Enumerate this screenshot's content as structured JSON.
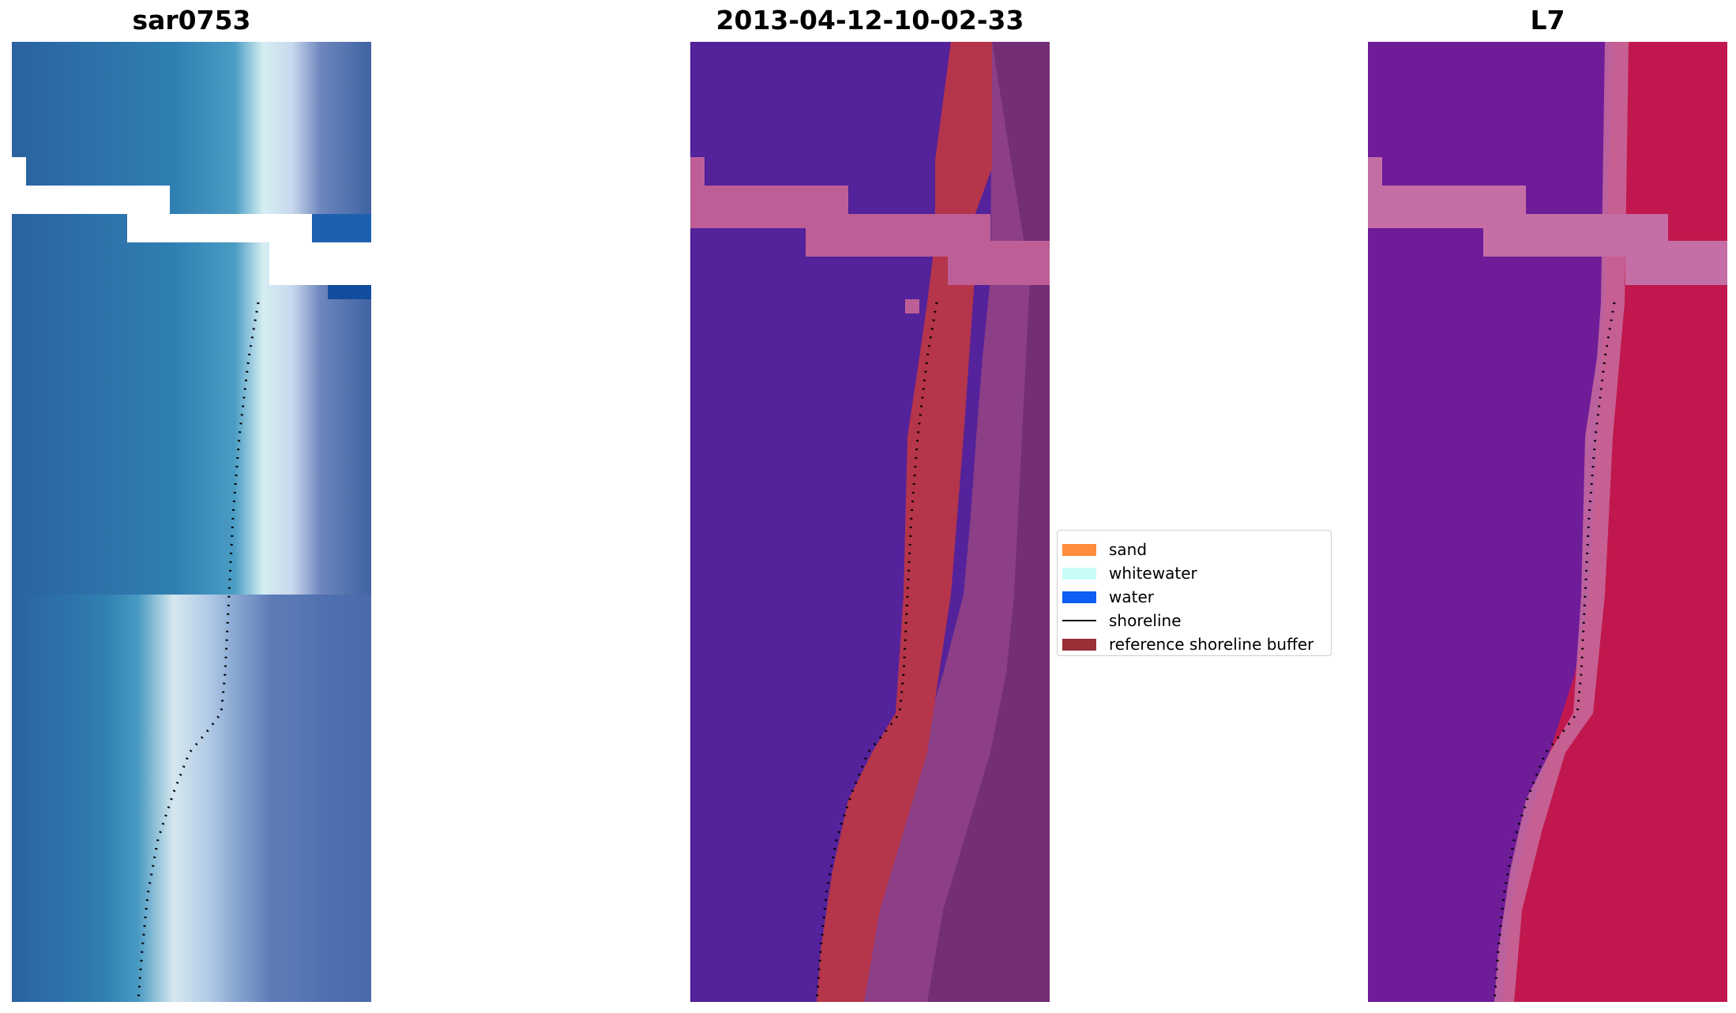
{
  "panels": [
    {
      "title": "sar0753"
    },
    {
      "title": "2013-04-12-10-02-33"
    },
    {
      "title": "L7"
    }
  ],
  "legend": {
    "items": [
      {
        "label": "sand",
        "color": "#ff8c3b",
        "kind": "patch"
      },
      {
        "label": "whitewater",
        "color": "#c8fdfa",
        "kind": "patch"
      },
      {
        "label": "water",
        "color": "#0d5ef2",
        "kind": "patch"
      },
      {
        "label": "shoreline",
        "color": "#000000",
        "kind": "line"
      },
      {
        "label": "reference shoreline buffer",
        "color": "#9b2f37",
        "kind": "patch"
      }
    ]
  }
}
